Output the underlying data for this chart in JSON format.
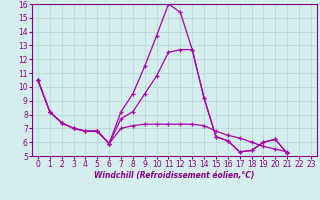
{
  "xlabel": "Windchill (Refroidissement éolien,°C)",
  "bg_color": "#d4eeee",
  "line_color": "#aa00aa",
  "grid_color": "#b8d8d8",
  "spine_color": "#880088",
  "xlim": [
    -0.5,
    23.5
  ],
  "ylim": [
    5,
    16
  ],
  "xticks": [
    0,
    1,
    2,
    3,
    4,
    5,
    6,
    7,
    8,
    9,
    10,
    11,
    12,
    13,
    14,
    15,
    16,
    17,
    18,
    19,
    20,
    21,
    22,
    23
  ],
  "yticks": [
    5,
    6,
    7,
    8,
    9,
    10,
    11,
    12,
    13,
    14,
    15,
    16
  ],
  "line1_x": [
    0,
    1,
    2,
    3,
    4,
    5,
    6,
    7,
    8,
    9,
    10,
    11,
    12,
    13,
    14,
    15,
    16,
    17,
    18,
    19,
    20,
    21,
    22,
    23
  ],
  "line1_y": [
    10.5,
    8.2,
    7.4,
    7.0,
    6.8,
    6.8,
    5.9,
    8.2,
    9.5,
    11.5,
    13.7,
    16.0,
    15.4,
    12.7,
    9.2,
    6.4,
    6.1,
    5.3,
    5.4,
    6.0,
    6.2,
    5.2,
    null,
    null
  ],
  "line2_x": [
    0,
    1,
    2,
    3,
    4,
    5,
    6,
    7,
    8,
    9,
    10,
    11,
    12,
    13,
    14,
    15,
    16,
    17,
    18,
    19,
    20,
    21,
    22,
    23
  ],
  "line2_y": [
    10.5,
    8.2,
    7.4,
    7.0,
    6.8,
    6.8,
    5.9,
    7.7,
    8.2,
    9.5,
    10.8,
    12.5,
    12.7,
    12.7,
    9.2,
    6.4,
    6.1,
    5.3,
    5.4,
    6.0,
    6.2,
    5.2,
    null,
    null
  ],
  "line3_x": [
    0,
    1,
    2,
    3,
    4,
    5,
    6,
    7,
    8,
    9,
    10,
    11,
    12,
    13,
    14,
    15,
    16,
    17,
    18,
    19,
    20,
    21,
    22,
    23
  ],
  "line3_y": [
    10.5,
    8.2,
    7.4,
    7.0,
    6.8,
    6.8,
    5.9,
    7.0,
    7.2,
    7.3,
    7.3,
    7.3,
    7.3,
    7.3,
    7.2,
    6.8,
    6.5,
    6.3,
    6.0,
    5.7,
    5.5,
    5.3,
    null,
    null
  ]
}
